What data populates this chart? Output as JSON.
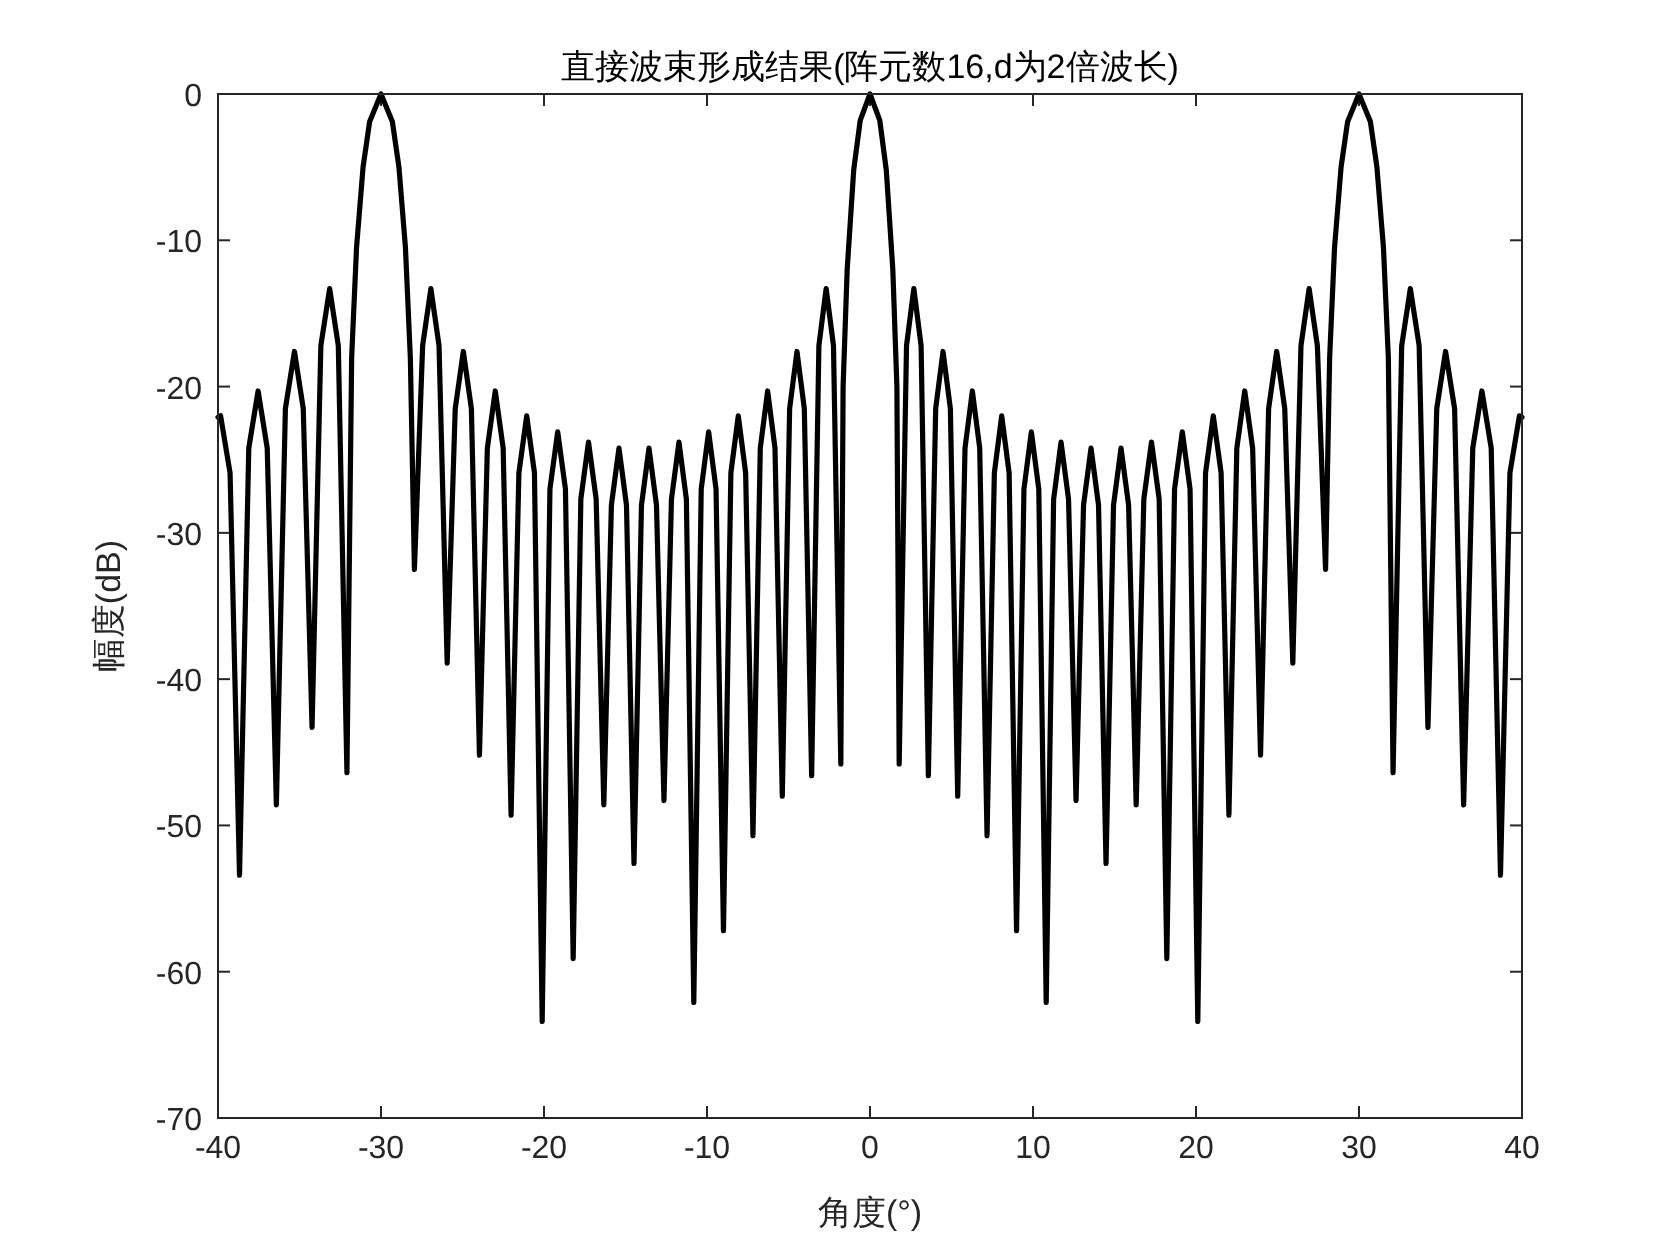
{
  "chart_data": {
    "type": "line",
    "title": "直接波束形成结果(阵元数16,d为2倍波长)",
    "xlabel": "角度(°)",
    "ylabel": "幅度(dB)",
    "xlim": [
      -40,
      40
    ],
    "ylim": [
      -70,
      0
    ],
    "xticks": [
      -40,
      -30,
      -20,
      -10,
      0,
      10,
      20,
      30,
      40
    ],
    "yticks": [
      -70,
      -60,
      -50,
      -40,
      -30,
      -20,
      -10,
      0
    ],
    "x": [
      -40,
      -39.84,
      -39.26,
      -38.68,
      -38.11,
      -37.54,
      -36.98,
      -36.42,
      -35.865,
      -35.31,
      -34.77,
      -34.23,
      -33.69,
      -33.15,
      -32.62,
      -32.09,
      -31.8,
      -31.5,
      -31.1,
      -30.7,
      -30,
      -29.3,
      -28.9,
      -28.5,
      -28.2,
      -27.95,
      -27.445,
      -26.94,
      -26.44,
      -25.94,
      -25.445,
      -24.95,
      -24.455,
      -23.96,
      -23.475,
      -22.99,
      -22.505,
      -22.02,
      -21.54,
      -21.06,
      -20.585,
      -20.11,
      -19.635,
      -19.16,
      -18.685,
      -18.21,
      -17.74,
      -17.27,
      -16.8,
      -16.33,
      -15.865,
      -15.4,
      -14.94,
      -14.48,
      -14.02,
      -13.56,
      -13.1,
      -12.64,
      -12.18,
      -11.72,
      -11.265,
      -10.81,
      -10.355,
      -9.9,
      -9.445,
      -8.99,
      -8.535,
      -8.08,
      -7.63,
      -7.18,
      -6.73,
      -6.28,
      -5.83,
      -5.38,
      -4.93,
      -4.48,
      -4.03,
      -3.58,
      -3.135,
      -2.69,
      -2.24,
      -1.79,
      -1.65,
      -1.4,
      -1.0,
      -0.6,
      0,
      0.6,
      1.0,
      1.4,
      1.65,
      1.79,
      2.24,
      2.69,
      3.135,
      3.58,
      4.03,
      4.48,
      4.93,
      5.38,
      5.83,
      6.28,
      6.73,
      7.18,
      7.63,
      8.08,
      8.535,
      8.99,
      9.445,
      9.9,
      10.355,
      10.81,
      11.265,
      11.72,
      12.18,
      12.64,
      13.1,
      13.56,
      14.02,
      14.48,
      14.94,
      15.4,
      15.865,
      16.33,
      16.8,
      17.27,
      17.74,
      18.21,
      18.685,
      19.16,
      19.635,
      20.11,
      20.585,
      21.06,
      21.54,
      22.02,
      22.505,
      22.99,
      23.475,
      23.96,
      24.455,
      24.95,
      25.445,
      25.94,
      26.44,
      26.94,
      27.445,
      27.95,
      28.2,
      28.5,
      28.9,
      29.3,
      30,
      30.7,
      31.1,
      31.5,
      31.8,
      32.09,
      32.62,
      33.15,
      33.69,
      34.23,
      34.77,
      35.31,
      35.865,
      36.42,
      36.98,
      37.54,
      38.11,
      38.68,
      39.26,
      39.84,
      40
    ],
    "series": [
      {
        "color": "#000000",
        "values": [
          -22.1,
          -22.0,
          -25.9,
          -53.4,
          -24.2,
          -20.3,
          -24.2,
          -48.6,
          -21.5,
          -17.6,
          -21.5,
          -43.3,
          -17.2,
          -13.3,
          -17.2,
          -46.4,
          -18,
          -10.5,
          -5,
          -1.9,
          0,
          -1.9,
          -5,
          -10.5,
          -18,
          -32.5,
          -17.2,
          -13.3,
          -17.2,
          -38.9,
          -21.5,
          -17.6,
          -21.5,
          -45.2,
          -24.2,
          -20.3,
          -24.2,
          -49.3,
          -25.9,
          -22.0,
          -25.9,
          -63.4,
          -27.0,
          -23.1,
          -27.0,
          -59.1,
          -27.7,
          -23.8,
          -27.7,
          -48.6,
          -28.1,
          -24.2,
          -28.1,
          -52.6,
          -28.1,
          -24.2,
          -28.1,
          -48.3,
          -27.7,
          -23.8,
          -27.7,
          -62.1,
          -27.0,
          -23.1,
          -27.0,
          -57.2,
          -25.9,
          -22.0,
          -25.9,
          -50.7,
          -24.2,
          -20.3,
          -24.2,
          -48.0,
          -21.5,
          -17.6,
          -21.5,
          -46.6,
          -17.2,
          -13.3,
          -17.2,
          -45.8,
          -20,
          -12,
          -5.2,
          -1.8,
          0,
          -1.8,
          -5.2,
          -12,
          -20,
          -45.8,
          -17.2,
          -13.3,
          -17.2,
          -46.6,
          -21.5,
          -17.6,
          -21.5,
          -48.0,
          -24.2,
          -20.3,
          -24.2,
          -50.7,
          -25.9,
          -22.0,
          -25.9,
          -57.2,
          -27.0,
          -23.1,
          -27.0,
          -62.1,
          -27.7,
          -23.8,
          -27.7,
          -48.3,
          -28.1,
          -24.2,
          -28.1,
          -52.6,
          -28.1,
          -24.2,
          -28.1,
          -48.6,
          -27.7,
          -23.8,
          -27.7,
          -59.1,
          -27.0,
          -23.1,
          -27.0,
          -63.4,
          -25.9,
          -22.0,
          -25.9,
          -49.3,
          -24.2,
          -20.3,
          -24.2,
          -45.2,
          -21.5,
          -17.6,
          -21.5,
          -38.9,
          -17.2,
          -13.3,
          -17.2,
          -32.5,
          -18,
          -10.5,
          -5,
          -1.9,
          0,
          -1.9,
          -5,
          -10.5,
          -18,
          -46.4,
          -17.2,
          -13.3,
          -17.2,
          -43.3,
          -21.5,
          -17.6,
          -21.5,
          -48.6,
          -24.2,
          -20.3,
          -24.2,
          -53.4,
          -25.9,
          -22.0,
          -22.1
        ]
      }
    ]
  }
}
